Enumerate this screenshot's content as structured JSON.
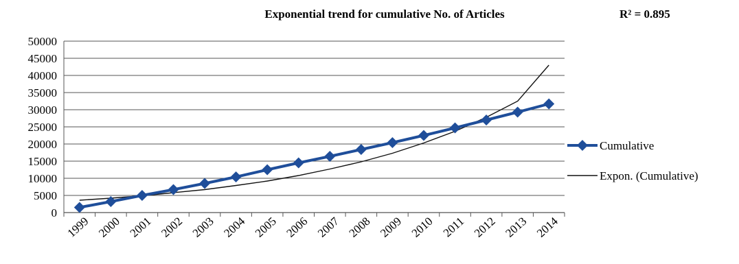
{
  "chart_data": {
    "type": "line",
    "title": "Exponential trend for cumulative No. of Articles",
    "annotation": "R² = 0.895",
    "xlabel": "",
    "ylabel": "",
    "categories": [
      "1999",
      "2000",
      "2001",
      "2002",
      "2003",
      "2004",
      "2005",
      "2006",
      "2007",
      "2008",
      "2009",
      "2010",
      "2011",
      "2012",
      "2013",
      "2014"
    ],
    "ylim": [
      0,
      50000
    ],
    "yticks": [
      0,
      5000,
      10000,
      15000,
      20000,
      25000,
      30000,
      35000,
      40000,
      45000,
      50000
    ],
    "grid": true,
    "legend_position": "right",
    "series": [
      {
        "name": "Cumulative",
        "color": "#1f4e9a",
        "marker": "diamond",
        "values": [
          1500,
          3200,
          5000,
          6700,
          8500,
          10400,
          12500,
          14500,
          16400,
          18400,
          20400,
          22500,
          24700,
          27000,
          29300,
          31700
        ]
      },
      {
        "name": "Expon. (Cumulative)",
        "color": "#111111",
        "marker": "none",
        "trend": "exponential",
        "values": [
          3600,
          4200,
          4900,
          5800,
          6700,
          7900,
          9200,
          10800,
          12700,
          14800,
          17300,
          20300,
          23700,
          27800,
          32500,
          43000
        ]
      }
    ]
  }
}
